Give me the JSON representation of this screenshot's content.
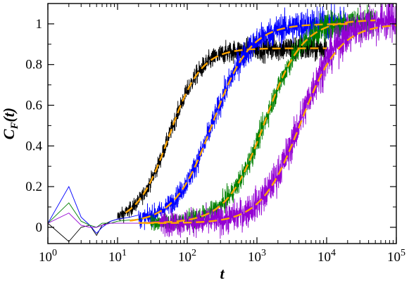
{
  "chart_data": {
    "type": "line",
    "xlabel": "t",
    "ylabel": "C",
    "ylabel_sub": "F",
    "ylabel_suffix": "(t)",
    "x_scale": "log",
    "xlim": [
      1,
      100000
    ],
    "ylim": [
      -0.08,
      1.1
    ],
    "grid": false,
    "x_ticks": [
      {
        "value": 1,
        "base": "10",
        "exp": "0"
      },
      {
        "value": 10,
        "base": "10",
        "exp": "1"
      },
      {
        "value": 100,
        "base": "10",
        "exp": "2"
      },
      {
        "value": 1000,
        "base": "10",
        "exp": "3"
      },
      {
        "value": 10000,
        "base": "10",
        "exp": "4"
      },
      {
        "value": 100000,
        "base": "10",
        "exp": "5"
      }
    ],
    "y_ticks": [
      {
        "value": 0,
        "label": "0"
      },
      {
        "value": 0.2,
        "label": "0.2"
      },
      {
        "value": 0.4,
        "label": "0.4"
      },
      {
        "value": 0.6,
        "label": "0.6"
      },
      {
        "value": 0.8,
        "label": "0.8"
      },
      {
        "value": 1,
        "label": "1"
      }
    ],
    "series": [
      {
        "color": "#000000",
        "style": "noisy",
        "tmax": 10000,
        "plateau": 0.88,
        "tau": 55,
        "hill": 1.9,
        "noise": 0.025,
        "early": [
          [
            1,
            0.02
          ],
          [
            2,
            -0.07
          ],
          [
            3,
            0.0
          ],
          [
            4,
            0.01
          ],
          [
            5,
            -0.04
          ],
          [
            6,
            0.01
          ],
          [
            8,
            0.03
          ],
          [
            10,
            0.04
          ]
        ]
      },
      {
        "color": "#0000ff",
        "style": "noisy",
        "tmax": 20000,
        "plateau": 1.0,
        "tau": 230,
        "hill": 1.6,
        "noise": 0.03,
        "early": [
          [
            1,
            0.02
          ],
          [
            2,
            0.2
          ],
          [
            3,
            0.05
          ],
          [
            4,
            0.01
          ],
          [
            5,
            -0.03
          ],
          [
            6,
            0.0
          ],
          [
            8,
            0.03
          ],
          [
            10,
            0.04
          ],
          [
            15,
            0.05
          ],
          [
            20,
            0.06
          ]
        ]
      },
      {
        "color": "#008000",
        "style": "noisy",
        "tmax": 50000,
        "plateau": 1.02,
        "tau": 1300,
        "hill": 1.6,
        "noise": 0.025,
        "early": [
          [
            1,
            0.02
          ],
          [
            2,
            0.12
          ],
          [
            3,
            0.03
          ],
          [
            4,
            0.01
          ],
          [
            5,
            0.0
          ],
          [
            6,
            0.02
          ],
          [
            8,
            0.02
          ],
          [
            10,
            0.03
          ],
          [
            20,
            0.04
          ],
          [
            30,
            0.05
          ]
        ]
      },
      {
        "color": "#9400d3",
        "style": "noisy",
        "tmax": 100000,
        "plateau": 1.03,
        "tau": 4200,
        "hill": 1.55,
        "noise": 0.035,
        "early": [
          [
            1,
            0.02
          ],
          [
            2,
            0.07
          ],
          [
            3,
            0.01
          ],
          [
            4,
            0.0
          ],
          [
            5,
            0.0
          ],
          [
            6,
            0.01
          ],
          [
            8,
            0.02
          ],
          [
            10,
            0.02
          ],
          [
            20,
            0.02
          ],
          [
            40,
            0.03
          ]
        ]
      },
      {
        "color": "#ffa500",
        "style": "fit",
        "tmin": 13,
        "tmax": 10000,
        "plateau": 0.88,
        "tau": 55,
        "hill": 1.9
      },
      {
        "color": "#ffa500",
        "style": "fit",
        "tmin": 15,
        "tmax": 20000,
        "plateau": 1.0,
        "tau": 230,
        "hill": 1.6
      },
      {
        "color": "#ffa500",
        "style": "fit",
        "tmin": 20,
        "tmax": 50000,
        "plateau": 1.02,
        "tau": 1300,
        "hill": 1.6
      },
      {
        "color": "#ffa500",
        "style": "fit",
        "tmin": 25,
        "tmax": 100000,
        "plateau": 1.0,
        "tau": 4200,
        "hill": 1.55
      }
    ]
  }
}
